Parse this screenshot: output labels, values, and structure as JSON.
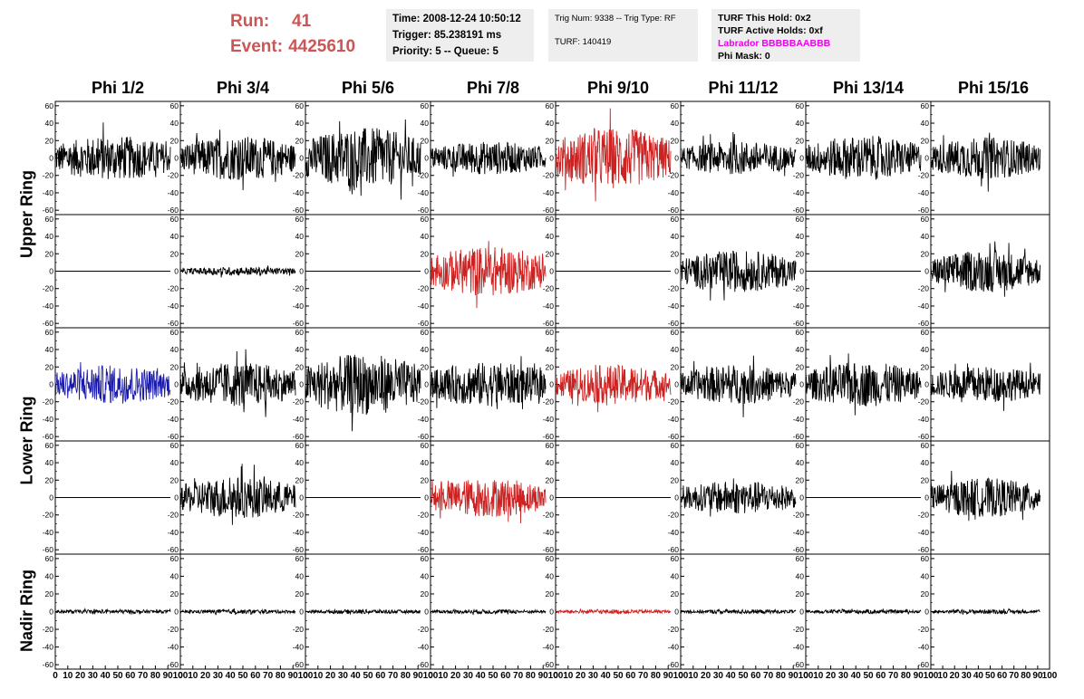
{
  "header": {
    "run_label": "Run:",
    "run_value": "41",
    "event_label": "Event:",
    "event_value": "4425610",
    "time_line": "Time: 2008-12-24 10:50:12",
    "trigger_line": "Trigger: 85.238191 ms",
    "priority_line": "Priority: 5 -- Queue: 5",
    "trig_line": "Trig Num: 9338 -- Trig Type: RF",
    "turf_line": "TURF: 140419",
    "turf_hold": "TURF This Hold: 0x2",
    "turf_active": "TURF Active Holds: 0xf",
    "labrador": "Labrador BBBBBAABBB",
    "phi_mask": "Phi Mask: 0"
  },
  "colors": {
    "header_red": "#cc5555",
    "magenta": "#ee00ee",
    "trace_black": "#000000",
    "trace_red": "#cc2222",
    "trace_blue": "#1a1aaa"
  },
  "chart_data": {
    "type": "line",
    "columns": [
      "Phi 1/2",
      "Phi 3/4",
      "Phi 5/6",
      "Phi 7/8",
      "Phi 9/10",
      "Phi 11/12",
      "Phi 13/14",
      "Phi 15/16"
    ],
    "rings": [
      "Upper Ring",
      "Lower Ring",
      "Nadir Ring"
    ],
    "ylim": [
      -65,
      65
    ],
    "yticks": [
      60,
      40,
      20,
      0,
      -20,
      -40,
      -60
    ],
    "ytick_labels": [
      "60",
      "40",
      "20",
      "0",
      "-20",
      "-40",
      "-60"
    ],
    "xlim": [
      0,
      100
    ],
    "xticks": [
      0,
      10,
      20,
      30,
      40,
      50,
      60,
      70,
      80,
      90,
      100
    ],
    "xtick_labels": [
      "0",
      "10",
      "20",
      "30",
      "40",
      "50",
      "60",
      "70",
      "80",
      "90",
      "100"
    ],
    "rows": [
      {
        "ring": "Upper Ring",
        "amplitudes": [
          16,
          16,
          22,
          12,
          22,
          12,
          16,
          15
        ],
        "colors": [
          "black",
          "black",
          "black",
          "black",
          "red",
          "black",
          "black",
          "black"
        ]
      },
      {
        "ring": "Upper Ring",
        "amplitudes": [
          0,
          3,
          0,
          18,
          0,
          15,
          0,
          15
        ],
        "colors": [
          "black",
          "black",
          "black",
          "red",
          "black",
          "black",
          "black",
          "black"
        ]
      },
      {
        "ring": "Lower Ring",
        "amplitudes": [
          14,
          16,
          22,
          16,
          14,
          14,
          16,
          13
        ],
        "colors": [
          "blue",
          "black",
          "black",
          "black",
          "red",
          "black",
          "black",
          "black"
        ]
      },
      {
        "ring": "Lower Ring",
        "amplitudes": [
          0,
          15,
          0,
          14,
          0,
          12,
          0,
          14
        ],
        "colors": [
          "black",
          "black",
          "black",
          "red",
          "black",
          "black",
          "black",
          "black"
        ]
      },
      {
        "ring": "Nadir Ring",
        "amplitudes": [
          1.5,
          1.5,
          1.5,
          1.5,
          1.5,
          1.5,
          1.5,
          1.5
        ],
        "colors": [
          "black",
          "black",
          "black",
          "black",
          "red",
          "black",
          "black",
          "black"
        ]
      }
    ]
  }
}
